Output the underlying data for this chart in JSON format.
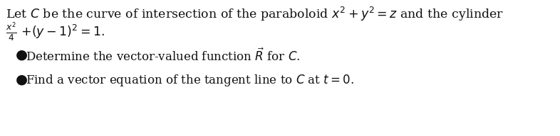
{
  "background_color": "#ffffff",
  "text_color": "#111111",
  "line1": "Let $C$ be the curve of intersection of the paraboloid $x^2 + y^2 = z$ and the cylinder",
  "line2_frac": "$\\frac{x^2}{4}$",
  "line2_rest": "$+(y-1)^2=1.$",
  "bullet1_text": "Determine the vector-valued function $\\vec{R}$ for $C$.",
  "bullet2_text": "Find a vector equation of the tangent line to $C$ at $t=0$.",
  "bullet_char": "●",
  "fs_main": 12.5,
  "fs_bullet": 12.0,
  "fig_width": 7.86,
  "fig_height": 1.92,
  "dpi": 100
}
